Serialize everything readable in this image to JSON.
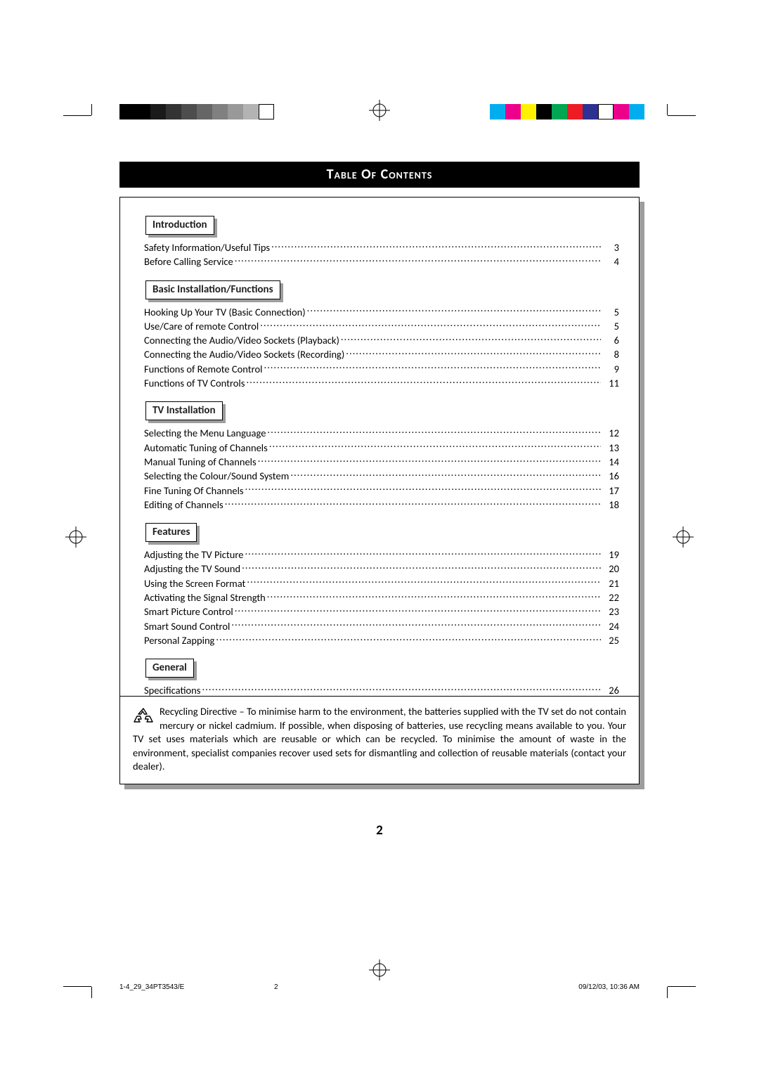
{
  "palette": {
    "black": "#000000",
    "white": "#ffffff",
    "shadow_gray": "#9d9d9d"
  },
  "register_bars": {
    "grayscale": [
      "#000000",
      "#000000",
      "#1a1a1a",
      "#333333",
      "#4d4d4d",
      "#666666",
      "#808080",
      "#999999",
      "#b3b3b3",
      "#ffffff"
    ],
    "process": [
      "#00aeef",
      "#ec008c",
      "#fff200",
      "#000000",
      "#00a651",
      "#ed1c24",
      "#2e3192",
      "#ffffff",
      "#ec008c",
      "#00aeef"
    ]
  },
  "title": "Table Of Contents",
  "sections": [
    {
      "heading": "Introduction",
      "items": [
        {
          "label": "Safety Information/Useful Tips",
          "page": "3"
        },
        {
          "label": "Before Calling Service",
          "page": "4"
        }
      ]
    },
    {
      "heading": "Basic Installation/Functions",
      "items": [
        {
          "label": "Hooking Up Your TV (Basic Connection)",
          "page": "5"
        },
        {
          "label": "Use/Care of remote Control",
          "page": "5"
        },
        {
          "label": "Connecting the Audio/Video Sockets (Playback)",
          "page": "6"
        },
        {
          "label": "Connecting the Audio/Video Sockets (Recording)",
          "page": "8"
        },
        {
          "label": "Functions of Remote Control",
          "page": "9"
        },
        {
          "label": "Functions of TV Controls",
          "page": "11"
        }
      ]
    },
    {
      "heading": "TV Installation",
      "items": [
        {
          "label": "Selecting the Menu Language",
          "page": "12"
        },
        {
          "label": "Automatic Tuning of Channels",
          "page": "13"
        },
        {
          "label": "Manual Tuning of Channels",
          "page": "14"
        },
        {
          "label": "Selecting the Colour/Sound System",
          "page": "16"
        },
        {
          "label": "Fine Tuning Of Channels",
          "page": "17"
        },
        {
          "label": "Editing of Channels",
          "page": "18"
        }
      ]
    },
    {
      "heading": "Features",
      "items": [
        {
          "label": "Adjusting the TV Picture",
          "page": "19"
        },
        {
          "label": "Adjusting the TV Sound",
          "page": "20"
        },
        {
          "label": "Using the Screen Format",
          "page": "21"
        },
        {
          "label": "Activating the Signal Strength",
          "page": "22"
        },
        {
          "label": "Smart Picture Control",
          "page": "23"
        },
        {
          "label": "Smart Sound Control",
          "page": "24"
        },
        {
          "label": "Personal Zapping",
          "page": "25"
        }
      ]
    },
    {
      "heading": "General",
      "items": [
        {
          "label": "Specifications",
          "page": "26"
        }
      ]
    }
  ],
  "recycling_text": "Recycling Directive – To minimise harm to the environment, the batteries supplied with the TV set do not contain mercury or nickel cadmium. If possible, when disposing of batteries, use recycling means available to you. Your TV set uses materials which are reusable or which can be recycled. To minimise the amount of waste in the environment, specialist companies recover used sets for dismantling and collection of reusable materials (contact your dealer).",
  "page_number": "2",
  "footer": {
    "left": "1-4_29_34PT3543/E",
    "mid": "2",
    "right": "09/12/03, 10:36 AM"
  }
}
